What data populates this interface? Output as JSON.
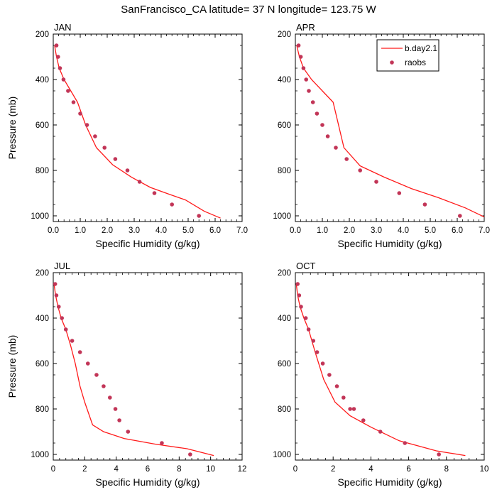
{
  "title": "SanFrancisco_CA  latitude= 37 N longitude= 123.75 W",
  "legend": {
    "model_label": "b.day2.1",
    "obs_label": "raobs"
  },
  "colors": {
    "model_line": "#ff1a1a",
    "obs_marker": "#c23557"
  },
  "chart_data": [
    {
      "type": "line",
      "panel": "JAN",
      "xlabel": "Specific Humidity (g/kg)",
      "ylabel": "Pressure (mb)",
      "xlim": [
        0,
        7
      ],
      "ylim": [
        200,
        1025
      ],
      "y_inverted": true,
      "xticks": [
        "0.0",
        "1.0",
        "2.0",
        "3.0",
        "4.0",
        "5.0",
        "6.0",
        "7.0"
      ],
      "yticks": [
        "200",
        "400",
        "600",
        "800",
        "1000"
      ],
      "series": [
        {
          "name": "b.day2.1",
          "kind": "line",
          "x": [
            0.05,
            0.12,
            0.22,
            0.4,
            0.65,
            0.9,
            1.2,
            1.6,
            2.2,
            2.9,
            3.6,
            4.3,
            4.9,
            5.6,
            6.2
          ],
          "y": [
            250,
            300,
            350,
            400,
            450,
            500,
            600,
            700,
            775,
            830,
            875,
            905,
            930,
            980,
            1010
          ]
        },
        {
          "name": "raobs",
          "kind": "points",
          "x": [
            0.12,
            0.18,
            0.25,
            0.38,
            0.55,
            0.75,
            1.0,
            1.25,
            1.55,
            1.9,
            2.3,
            2.75,
            3.2,
            3.75,
            4.4,
            5.4
          ],
          "y": [
            250,
            300,
            350,
            400,
            450,
            500,
            550,
            600,
            650,
            700,
            750,
            800,
            850,
            900,
            950,
            1000
          ]
        }
      ]
    },
    {
      "type": "line",
      "panel": "APR",
      "xlabel": "Specific Humidity (g/kg)",
      "ylabel": "",
      "xlim": [
        0,
        7
      ],
      "ylim": [
        200,
        1025
      ],
      "y_inverted": true,
      "xticks": [
        "0.0",
        "1.0",
        "2.0",
        "3.0",
        "4.0",
        "5.0",
        "6.0",
        "7.0"
      ],
      "yticks": [
        "200",
        "400",
        "600",
        "800",
        "1000"
      ],
      "legend_position": "top-right",
      "series": [
        {
          "name": "b.day2.1",
          "kind": "line",
          "x": [
            0.05,
            0.15,
            0.3,
            0.6,
            1.0,
            1.4,
            1.8,
            2.4,
            3.3,
            4.3,
            5.3,
            6.3,
            7.0
          ],
          "y": [
            250,
            300,
            350,
            400,
            450,
            500,
            700,
            780,
            830,
            880,
            920,
            965,
            1005
          ]
        },
        {
          "name": "raobs",
          "kind": "points",
          "x": [
            0.12,
            0.2,
            0.3,
            0.4,
            0.5,
            0.65,
            0.8,
            1.0,
            1.2,
            1.5,
            1.9,
            2.4,
            3.0,
            3.85,
            4.8,
            6.1
          ],
          "y": [
            250,
            300,
            350,
            400,
            450,
            500,
            550,
            600,
            650,
            700,
            750,
            800,
            850,
            900,
            950,
            1000
          ]
        }
      ]
    },
    {
      "type": "line",
      "panel": "JUL",
      "xlabel": "Specific Humidity (g/kg)",
      "ylabel": "Pressure (mb)",
      "xlim": [
        0,
        12
      ],
      "ylim": [
        200,
        1025
      ],
      "y_inverted": true,
      "xticks": [
        "0",
        "2",
        "4",
        "6",
        "8",
        "10",
        "12"
      ],
      "yticks": [
        "200",
        "400",
        "600",
        "800",
        "1000"
      ],
      "series": [
        {
          "name": "b.day2.1",
          "kind": "line",
          "x": [
            0.05,
            0.15,
            0.3,
            0.5,
            0.8,
            1.1,
            1.4,
            1.7,
            2.0,
            2.5,
            3.2,
            4.5,
            6.5,
            8.5,
            10.2
          ],
          "y": [
            250,
            300,
            350,
            400,
            450,
            520,
            600,
            700,
            770,
            870,
            900,
            930,
            955,
            975,
            1005
          ]
        },
        {
          "name": "raobs",
          "kind": "points",
          "x": [
            0.12,
            0.2,
            0.35,
            0.55,
            0.8,
            1.2,
            1.7,
            2.2,
            2.75,
            3.2,
            3.6,
            3.95,
            4.2,
            4.75,
            6.9,
            8.7
          ],
          "y": [
            250,
            300,
            350,
            400,
            450,
            500,
            550,
            600,
            650,
            700,
            750,
            800,
            850,
            900,
            950,
            1000
          ]
        }
      ]
    },
    {
      "type": "line",
      "panel": "OCT",
      "xlabel": "Specific Humidity (g/kg)",
      "ylabel": "",
      "xlim": [
        0,
        10
      ],
      "ylim": [
        200,
        1025
      ],
      "y_inverted": true,
      "xticks": [
        "0",
        "2",
        "4",
        "6",
        "8",
        "10"
      ],
      "yticks": [
        "200",
        "400",
        "600",
        "800",
        "1000"
      ],
      "series": [
        {
          "name": "b.day2.1",
          "kind": "line",
          "x": [
            0.05,
            0.12,
            0.25,
            0.45,
            0.7,
            1.05,
            1.5,
            2.1,
            2.9,
            4.0,
            5.5,
            7.5,
            9.0
          ],
          "y": [
            250,
            300,
            350,
            400,
            450,
            550,
            670,
            770,
            830,
            880,
            940,
            985,
            1005
          ]
        },
        {
          "name": "raobs",
          "kind": "points",
          "x": [
            0.12,
            0.2,
            0.3,
            0.55,
            0.7,
            0.95,
            1.15,
            1.45,
            1.8,
            2.2,
            2.55,
            2.9,
            3.1,
            3.6,
            4.5,
            5.8,
            7.6
          ],
          "y": [
            250,
            300,
            350,
            400,
            450,
            500,
            550,
            600,
            650,
            700,
            750,
            800,
            800,
            850,
            900,
            950,
            1000
          ]
        }
      ]
    }
  ]
}
